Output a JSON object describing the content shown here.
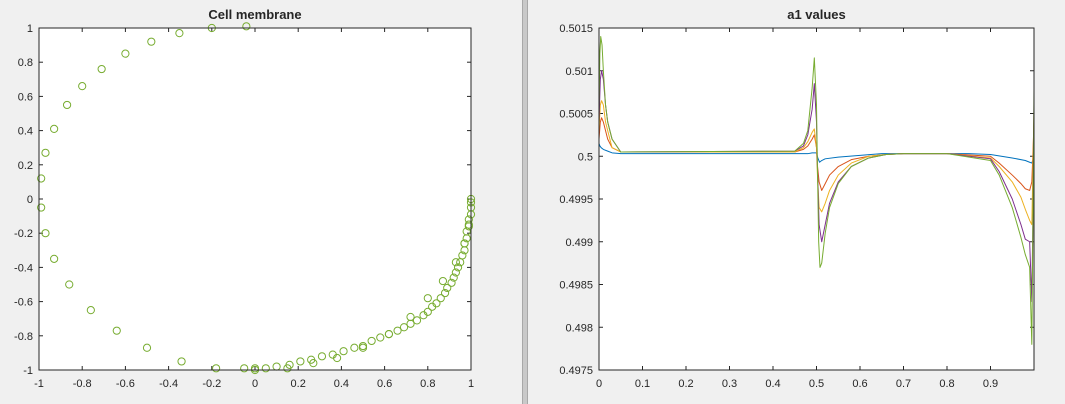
{
  "chart_data": [
    {
      "type": "scatter",
      "title": "Cell membrane",
      "xlabel": "",
      "ylabel": "",
      "xlim": [
        -1,
        1
      ],
      "ylim": [
        -1,
        1
      ],
      "xticks": [
        -1,
        -0.8,
        -0.6,
        -0.4,
        -0.2,
        0,
        0.2,
        0.4,
        0.6,
        0.8,
        1
      ],
      "yticks": [
        -1,
        -0.8,
        -0.6,
        -0.4,
        -0.2,
        0,
        0.2,
        0.4,
        0.6,
        0.8,
        1
      ],
      "xtick_labels": [
        "-1",
        "-0.8",
        "-0.6",
        "-0.4",
        "-0.2",
        "0",
        "0.2",
        "0.4",
        "0.6",
        "0.8",
        "1"
      ],
      "ytick_labels": [
        "-1",
        "-0.8",
        "-0.6",
        "-0.4",
        "-0.2",
        "0",
        "0.2",
        "0.4",
        "0.6",
        "0.8",
        "1"
      ],
      "grid": false,
      "marker": "circle-open",
      "color": "#77ac30",
      "series": [
        {
          "x": [
            0.0,
            0.15,
            0.27,
            0.38,
            0.5,
            0.62,
            0.72,
            0.8,
            0.87,
            0.93,
            0.97,
            0.99,
            1.0,
            1.0,
            1.0,
            1.0,
            0.99,
            0.99,
            0.98,
            0.98,
            0.97,
            0.97,
            0.96,
            0.95,
            0.94,
            0.93,
            0.92,
            0.91,
            0.89,
            0.88,
            0.86,
            0.84,
            0.82,
            0.8,
            0.78,
            0.75,
            0.72,
            0.69,
            0.66,
            0.62,
            0.58,
            0.54,
            0.5,
            0.46,
            0.41,
            0.36,
            0.31,
            0.26,
            0.21,
            0.16,
            0.1,
            0.05,
            0.0,
            -0.05,
            -0.18,
            -0.34,
            -0.5,
            -0.64,
            -0.76,
            -0.86,
            -0.93,
            -0.97,
            -0.99,
            -0.99,
            -0.97,
            -0.93,
            -0.87,
            -0.8,
            -0.71,
            -0.6,
            -0.48,
            -0.35,
            -0.2,
            -0.04
          ],
          "y": [
            -1.0,
            -0.99,
            -0.96,
            -0.93,
            -0.87,
            -0.79,
            -0.69,
            -0.58,
            -0.48,
            -0.37,
            -0.26,
            -0.15,
            -0.09,
            -0.05,
            -0.02,
            0.0,
            -0.12,
            -0.16,
            -0.19,
            -0.23,
            -0.26,
            -0.3,
            -0.33,
            -0.37,
            -0.4,
            -0.43,
            -0.46,
            -0.49,
            -0.52,
            -0.55,
            -0.58,
            -0.61,
            -0.63,
            -0.66,
            -0.68,
            -0.71,
            -0.73,
            -0.75,
            -0.77,
            -0.79,
            -0.81,
            -0.83,
            -0.86,
            -0.87,
            -0.89,
            -0.91,
            -0.92,
            -0.94,
            -0.95,
            -0.97,
            -0.98,
            -0.99,
            -0.99,
            -0.99,
            -0.99,
            -0.95,
            -0.87,
            -0.77,
            -0.65,
            -0.5,
            -0.35,
            -0.2,
            -0.05,
            0.12,
            0.27,
            0.41,
            0.55,
            0.66,
            0.76,
            0.85,
            0.92,
            0.97,
            1.0,
            1.01
          ]
        }
      ]
    },
    {
      "type": "line",
      "title": "a1 values",
      "xlabel": "",
      "ylabel": "",
      "xlim": [
        0,
        1
      ],
      "ylim": [
        0.4975,
        0.5015
      ],
      "xticks": [
        0,
        0.1,
        0.2,
        0.3,
        0.4,
        0.5,
        0.6,
        0.7,
        0.8,
        0.9
      ],
      "yticks": [
        0.4975,
        0.498,
        0.4985,
        0.499,
        0.4995,
        0.5,
        0.5005,
        0.501,
        0.5015
      ],
      "xtick_labels": [
        "0",
        "0.1",
        "0.2",
        "0.3",
        "0.4",
        "0.5",
        "0.6",
        "0.7",
        "0.8",
        "0.9"
      ],
      "ytick_labels": [
        "0.4975",
        "0.498",
        "0.4985",
        "0.499",
        "0.4995",
        "0.5",
        "0.5005",
        "0.501",
        "0.5015"
      ],
      "grid": false,
      "series": [
        {
          "color": "#0072bd",
          "x": [
            0,
            0.002,
            0.005,
            0.01,
            0.02,
            0.03,
            0.05,
            0.3,
            0.48,
            0.49,
            0.5,
            0.503,
            0.507,
            0.512,
            0.52,
            0.55,
            0.6,
            0.65,
            0.7,
            0.75,
            0.8,
            0.85,
            0.9,
            0.95,
            0.98,
            0.99,
            0.995,
            0.997
          ],
          "y": [
            0.50015,
            0.50012,
            0.5001,
            0.50008,
            0.50006,
            0.50004,
            0.50003,
            0.50003,
            0.50003,
            0.50004,
            0.50004,
            0.49998,
            0.49993,
            0.49995,
            0.49997,
            0.49999,
            0.50001,
            0.50003,
            0.50003,
            0.50003,
            0.50003,
            0.50003,
            0.50002,
            0.49998,
            0.49995,
            0.49993,
            0.49992,
            0.49995
          ]
        },
        {
          "color": "#d95319",
          "x": [
            0,
            0.003,
            0.006,
            0.01,
            0.015,
            0.02,
            0.03,
            0.05,
            0.45,
            0.47,
            0.48,
            0.49,
            0.495,
            0.5,
            0.502,
            0.506,
            0.512,
            0.52,
            0.53,
            0.55,
            0.58,
            0.62,
            0.66,
            0.7,
            0.8,
            0.9,
            0.92,
            0.95,
            0.97,
            0.98,
            0.99,
            0.995,
            0.998,
            1.0
          ],
          "y": [
            0.5002,
            0.5004,
            0.50045,
            0.5004,
            0.5003,
            0.5002,
            0.5001,
            0.50005,
            0.50005,
            0.50008,
            0.50012,
            0.5002,
            0.50025,
            0.5001,
            0.4999,
            0.4997,
            0.4996,
            0.49968,
            0.49978,
            0.49988,
            0.49996,
            0.5,
            0.50002,
            0.50003,
            0.50003,
            0.5,
            0.49992,
            0.49978,
            0.49968,
            0.49962,
            0.4996,
            0.4997,
            0.5001,
            0.5004
          ]
        },
        {
          "color": "#edb120",
          "x": [
            0,
            0.003,
            0.006,
            0.01,
            0.015,
            0.02,
            0.03,
            0.05,
            0.45,
            0.47,
            0.48,
            0.49,
            0.495,
            0.5,
            0.502,
            0.506,
            0.512,
            0.52,
            0.53,
            0.55,
            0.58,
            0.62,
            0.66,
            0.7,
            0.8,
            0.9,
            0.92,
            0.95,
            0.97,
            0.98,
            0.99,
            0.995,
            0.998,
            1.0
          ],
          "y": [
            0.5003,
            0.5006,
            0.50065,
            0.5006,
            0.5004,
            0.5003,
            0.5001,
            0.50005,
            0.50005,
            0.5001,
            0.50017,
            0.50028,
            0.50032,
            0.5001,
            0.4998,
            0.4994,
            0.49935,
            0.49945,
            0.4996,
            0.49978,
            0.49992,
            0.5,
            0.50002,
            0.50003,
            0.50003,
            0.49998,
            0.49988,
            0.4997,
            0.49952,
            0.49938,
            0.49925,
            0.4992,
            0.5,
            0.5005
          ]
        },
        {
          "color": "#7e2f8e",
          "x": [
            0,
            0.003,
            0.006,
            0.01,
            0.015,
            0.02,
            0.03,
            0.05,
            0.45,
            0.47,
            0.48,
            0.49,
            0.495,
            0.5,
            0.502,
            0.506,
            0.512,
            0.52,
            0.53,
            0.55,
            0.58,
            0.62,
            0.66,
            0.7,
            0.8,
            0.9,
            0.92,
            0.95,
            0.97,
            0.98,
            0.99,
            0.995,
            0.998,
            1.0
          ],
          "y": [
            0.5004,
            0.5009,
            0.501,
            0.5009,
            0.5006,
            0.5004,
            0.5002,
            0.50005,
            0.50006,
            0.50012,
            0.50025,
            0.50055,
            0.50085,
            0.5004,
            0.4999,
            0.4992,
            0.499,
            0.4992,
            0.49945,
            0.4997,
            0.49988,
            0.49998,
            0.50002,
            0.50003,
            0.50003,
            0.49997,
            0.49982,
            0.4995,
            0.4992,
            0.49903,
            0.499,
            0.4983,
            0.4995,
            0.5006
          ]
        },
        {
          "color": "#77ac30",
          "x": [
            0,
            0.002,
            0.004,
            0.007,
            0.01,
            0.015,
            0.02,
            0.03,
            0.05,
            0.45,
            0.47,
            0.48,
            0.49,
            0.495,
            0.5,
            0.502,
            0.505,
            0.508,
            0.512,
            0.52,
            0.53,
            0.55,
            0.58,
            0.62,
            0.66,
            0.7,
            0.8,
            0.9,
            0.92,
            0.95,
            0.97,
            0.98,
            0.99,
            0.995,
            0.998,
            1.0
          ],
          "y": [
            0.5005,
            0.5012,
            0.5014,
            0.5013,
            0.501,
            0.5006,
            0.5004,
            0.5002,
            0.50005,
            0.50006,
            0.50015,
            0.5003,
            0.5008,
            0.50115,
            0.5006,
            0.4999,
            0.499,
            0.4987,
            0.49875,
            0.4991,
            0.4994,
            0.49968,
            0.49988,
            0.49998,
            0.50002,
            0.50003,
            0.50003,
            0.49995,
            0.49978,
            0.4994,
            0.49905,
            0.49885,
            0.4987,
            0.4978,
            0.4995,
            0.5008
          ]
        }
      ]
    }
  ]
}
